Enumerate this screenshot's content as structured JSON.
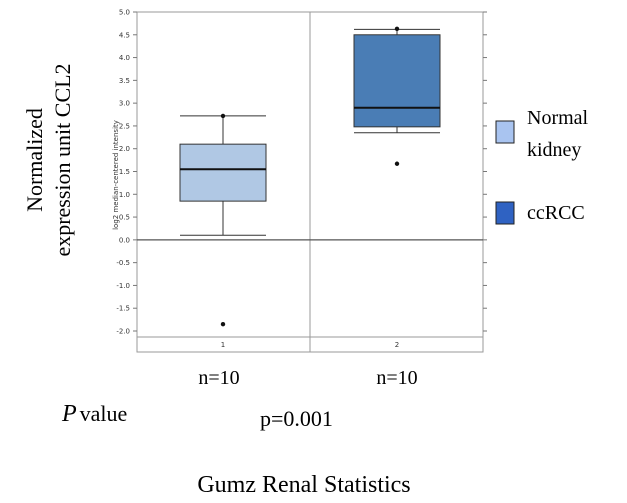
{
  "chart_data": {
    "type": "box",
    "title": "Gumz Renal Statistics",
    "ylabel": "Normalized expression unit CCL2",
    "ylabel_lines": [
      "Normalized",
      "expression unit CCL2"
    ],
    "inner_ylabel": "log2 median-centered intensity",
    "ylim": [
      -2.3,
      5.0
    ],
    "yticks": [
      "5.0",
      "4.5",
      "4.0",
      "3.5",
      "3.0",
      "2.5",
      "2.0",
      "1.5",
      "1.0",
      "0.5",
      "0.0",
      "-0.5",
      "-1.0",
      "-1.5",
      "-2.0"
    ],
    "grid": false,
    "legend_position": "right",
    "categories": [
      "1",
      "2"
    ],
    "series": [
      {
        "name": "Normal kidney",
        "legend_lines": [
          "Normal",
          "kidney"
        ],
        "color": "#b0c8e4",
        "legend_color": "#a9c4f0",
        "category": "1",
        "n_label": "n=10",
        "whisker_low": 0.1,
        "q1": 0.85,
        "median": 1.55,
        "q3": 2.1,
        "whisker_high": 2.72,
        "outliers": [
          2.72,
          -1.85
        ]
      },
      {
        "name": "ccRCC",
        "legend_lines": [
          "ccRCC"
        ],
        "color": "#4a7db5",
        "legend_color": "#2f62c2",
        "category": "2",
        "n_label": "n=10",
        "whisker_low": 2.35,
        "q1": 2.48,
        "median": 2.9,
        "q3": 4.5,
        "whisker_high": 4.62,
        "outliers": [
          4.63,
          1.67
        ]
      }
    ],
    "pvalue_label": "value",
    "pvalue_prefix": "P",
    "pvalue": "p=0.001"
  }
}
